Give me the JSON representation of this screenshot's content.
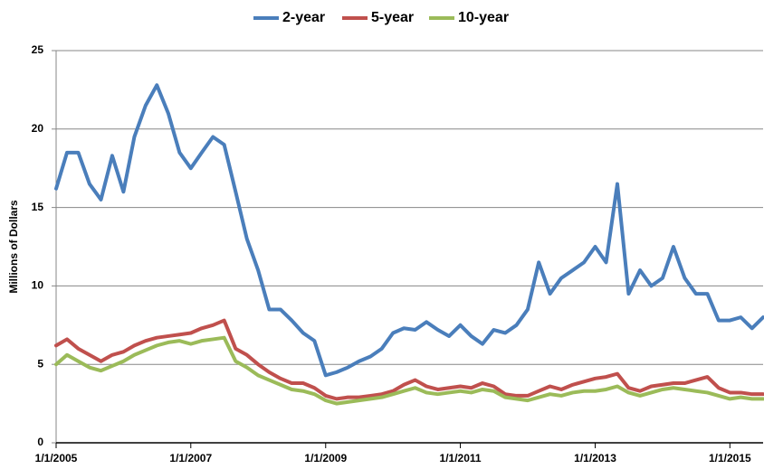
{
  "chart_data": {
    "type": "line",
    "y_label": "Millions of Dollars",
    "x": [
      "2005-01-01",
      "2005-03-01",
      "2005-05-01",
      "2005-07-01",
      "2005-09-01",
      "2005-11-01",
      "2006-01-01",
      "2006-03-01",
      "2006-05-01",
      "2006-07-01",
      "2006-09-01",
      "2006-11-01",
      "2007-01-01",
      "2007-03-01",
      "2007-05-01",
      "2007-07-01",
      "2007-09-01",
      "2007-11-01",
      "2008-01-01",
      "2008-03-01",
      "2008-05-01",
      "2008-07-01",
      "2008-09-01",
      "2008-11-01",
      "2009-01-01",
      "2009-03-01",
      "2009-05-01",
      "2009-07-01",
      "2009-09-01",
      "2009-11-01",
      "2010-01-01",
      "2010-03-01",
      "2010-05-01",
      "2010-07-01",
      "2010-09-01",
      "2010-11-01",
      "2011-01-01",
      "2011-03-01",
      "2011-05-01",
      "2011-07-01",
      "2011-09-01",
      "2011-11-01",
      "2012-01-01",
      "2012-03-01",
      "2012-05-01",
      "2012-07-01",
      "2012-09-01",
      "2012-11-01",
      "2013-01-01",
      "2013-03-01",
      "2013-05-01",
      "2013-07-01",
      "2013-09-01",
      "2013-11-01",
      "2014-01-01",
      "2014-03-01",
      "2014-05-01",
      "2014-07-01",
      "2014-09-01",
      "2014-11-01",
      "2015-01-01",
      "2015-03-01",
      "2015-05-01",
      "2015-06-30"
    ],
    "series": [
      {
        "name": "2-year",
        "color": "#4a7ebb",
        "values": [
          16.2,
          18.5,
          18.5,
          16.5,
          15.5,
          18.3,
          16,
          19.5,
          21.5,
          22.8,
          21,
          18.5,
          17.5,
          18.5,
          19.5,
          19,
          16,
          13,
          11,
          8.5,
          8.5,
          7.8,
          7,
          6.5,
          4.3,
          4.5,
          4.8,
          5.2,
          5.5,
          6,
          7,
          7.3,
          7.2,
          7.7,
          7.2,
          6.8,
          7.5,
          6.8,
          6.3,
          7.2,
          7,
          7.5,
          8.5,
          11.5,
          9.5,
          10.5,
          11,
          11.5,
          12.5,
          11.5,
          16.5,
          9.5,
          11,
          10,
          10.5,
          12.5,
          10.5,
          9.5,
          9.5,
          7.8,
          7.8,
          8,
          7.3,
          8
        ]
      },
      {
        "name": "5-year",
        "color": "#c0504d",
        "values": [
          6.2,
          6.6,
          6.0,
          5.6,
          5.2,
          5.6,
          5.8,
          6.2,
          6.5,
          6.7,
          6.8,
          6.9,
          7.0,
          7.3,
          7.5,
          7.8,
          6.0,
          5.6,
          5.0,
          4.5,
          4.1,
          3.8,
          3.8,
          3.5,
          3.0,
          2.8,
          2.9,
          2.9,
          3.0,
          3.1,
          3.3,
          3.7,
          4.0,
          3.6,
          3.4,
          3.5,
          3.6,
          3.5,
          3.8,
          3.6,
          3.1,
          3.0,
          3.0,
          3.3,
          3.6,
          3.4,
          3.7,
          3.9,
          4.1,
          4.2,
          4.4,
          3.5,
          3.3,
          3.6,
          3.7,
          3.8,
          3.8,
          4.0,
          4.2,
          3.5,
          3.2,
          3.2,
          3.1,
          3.1
        ]
      },
      {
        "name": "10-year",
        "color": "#9bbb59",
        "values": [
          5.0,
          5.6,
          5.2,
          4.8,
          4.6,
          4.9,
          5.2,
          5.6,
          5.9,
          6.2,
          6.4,
          6.5,
          6.3,
          6.5,
          6.6,
          6.7,
          5.2,
          4.8,
          4.3,
          4.0,
          3.7,
          3.4,
          3.3,
          3.1,
          2.7,
          2.5,
          2.6,
          2.7,
          2.8,
          2.9,
          3.1,
          3.3,
          3.5,
          3.2,
          3.1,
          3.2,
          3.3,
          3.2,
          3.4,
          3.3,
          2.9,
          2.8,
          2.7,
          2.9,
          3.1,
          3.0,
          3.2,
          3.3,
          3.3,
          3.4,
          3.6,
          3.2,
          3.0,
          3.2,
          3.4,
          3.5,
          3.4,
          3.3,
          3.2,
          3.0,
          2.8,
          2.9,
          2.8,
          2.8
        ]
      }
    ],
    "xlim": [
      "2005-01-01",
      "2015-06-30"
    ],
    "xticks": [
      {
        "value": "2005-01-01",
        "label": "1/1/2005"
      },
      {
        "value": "2007-01-01",
        "label": "1/1/2007"
      },
      {
        "value": "2009-01-01",
        "label": "1/1/2009"
      },
      {
        "value": "2011-01-01",
        "label": "1/1/2011"
      },
      {
        "value": "2013-01-01",
        "label": "1/1/2013"
      },
      {
        "value": "2015-01-01",
        "label": "1/1/2015"
      }
    ],
    "ylim": [
      0,
      25
    ],
    "yticks": [
      0,
      5,
      10,
      15,
      20,
      25
    ],
    "grid": true,
    "legend": "top"
  }
}
